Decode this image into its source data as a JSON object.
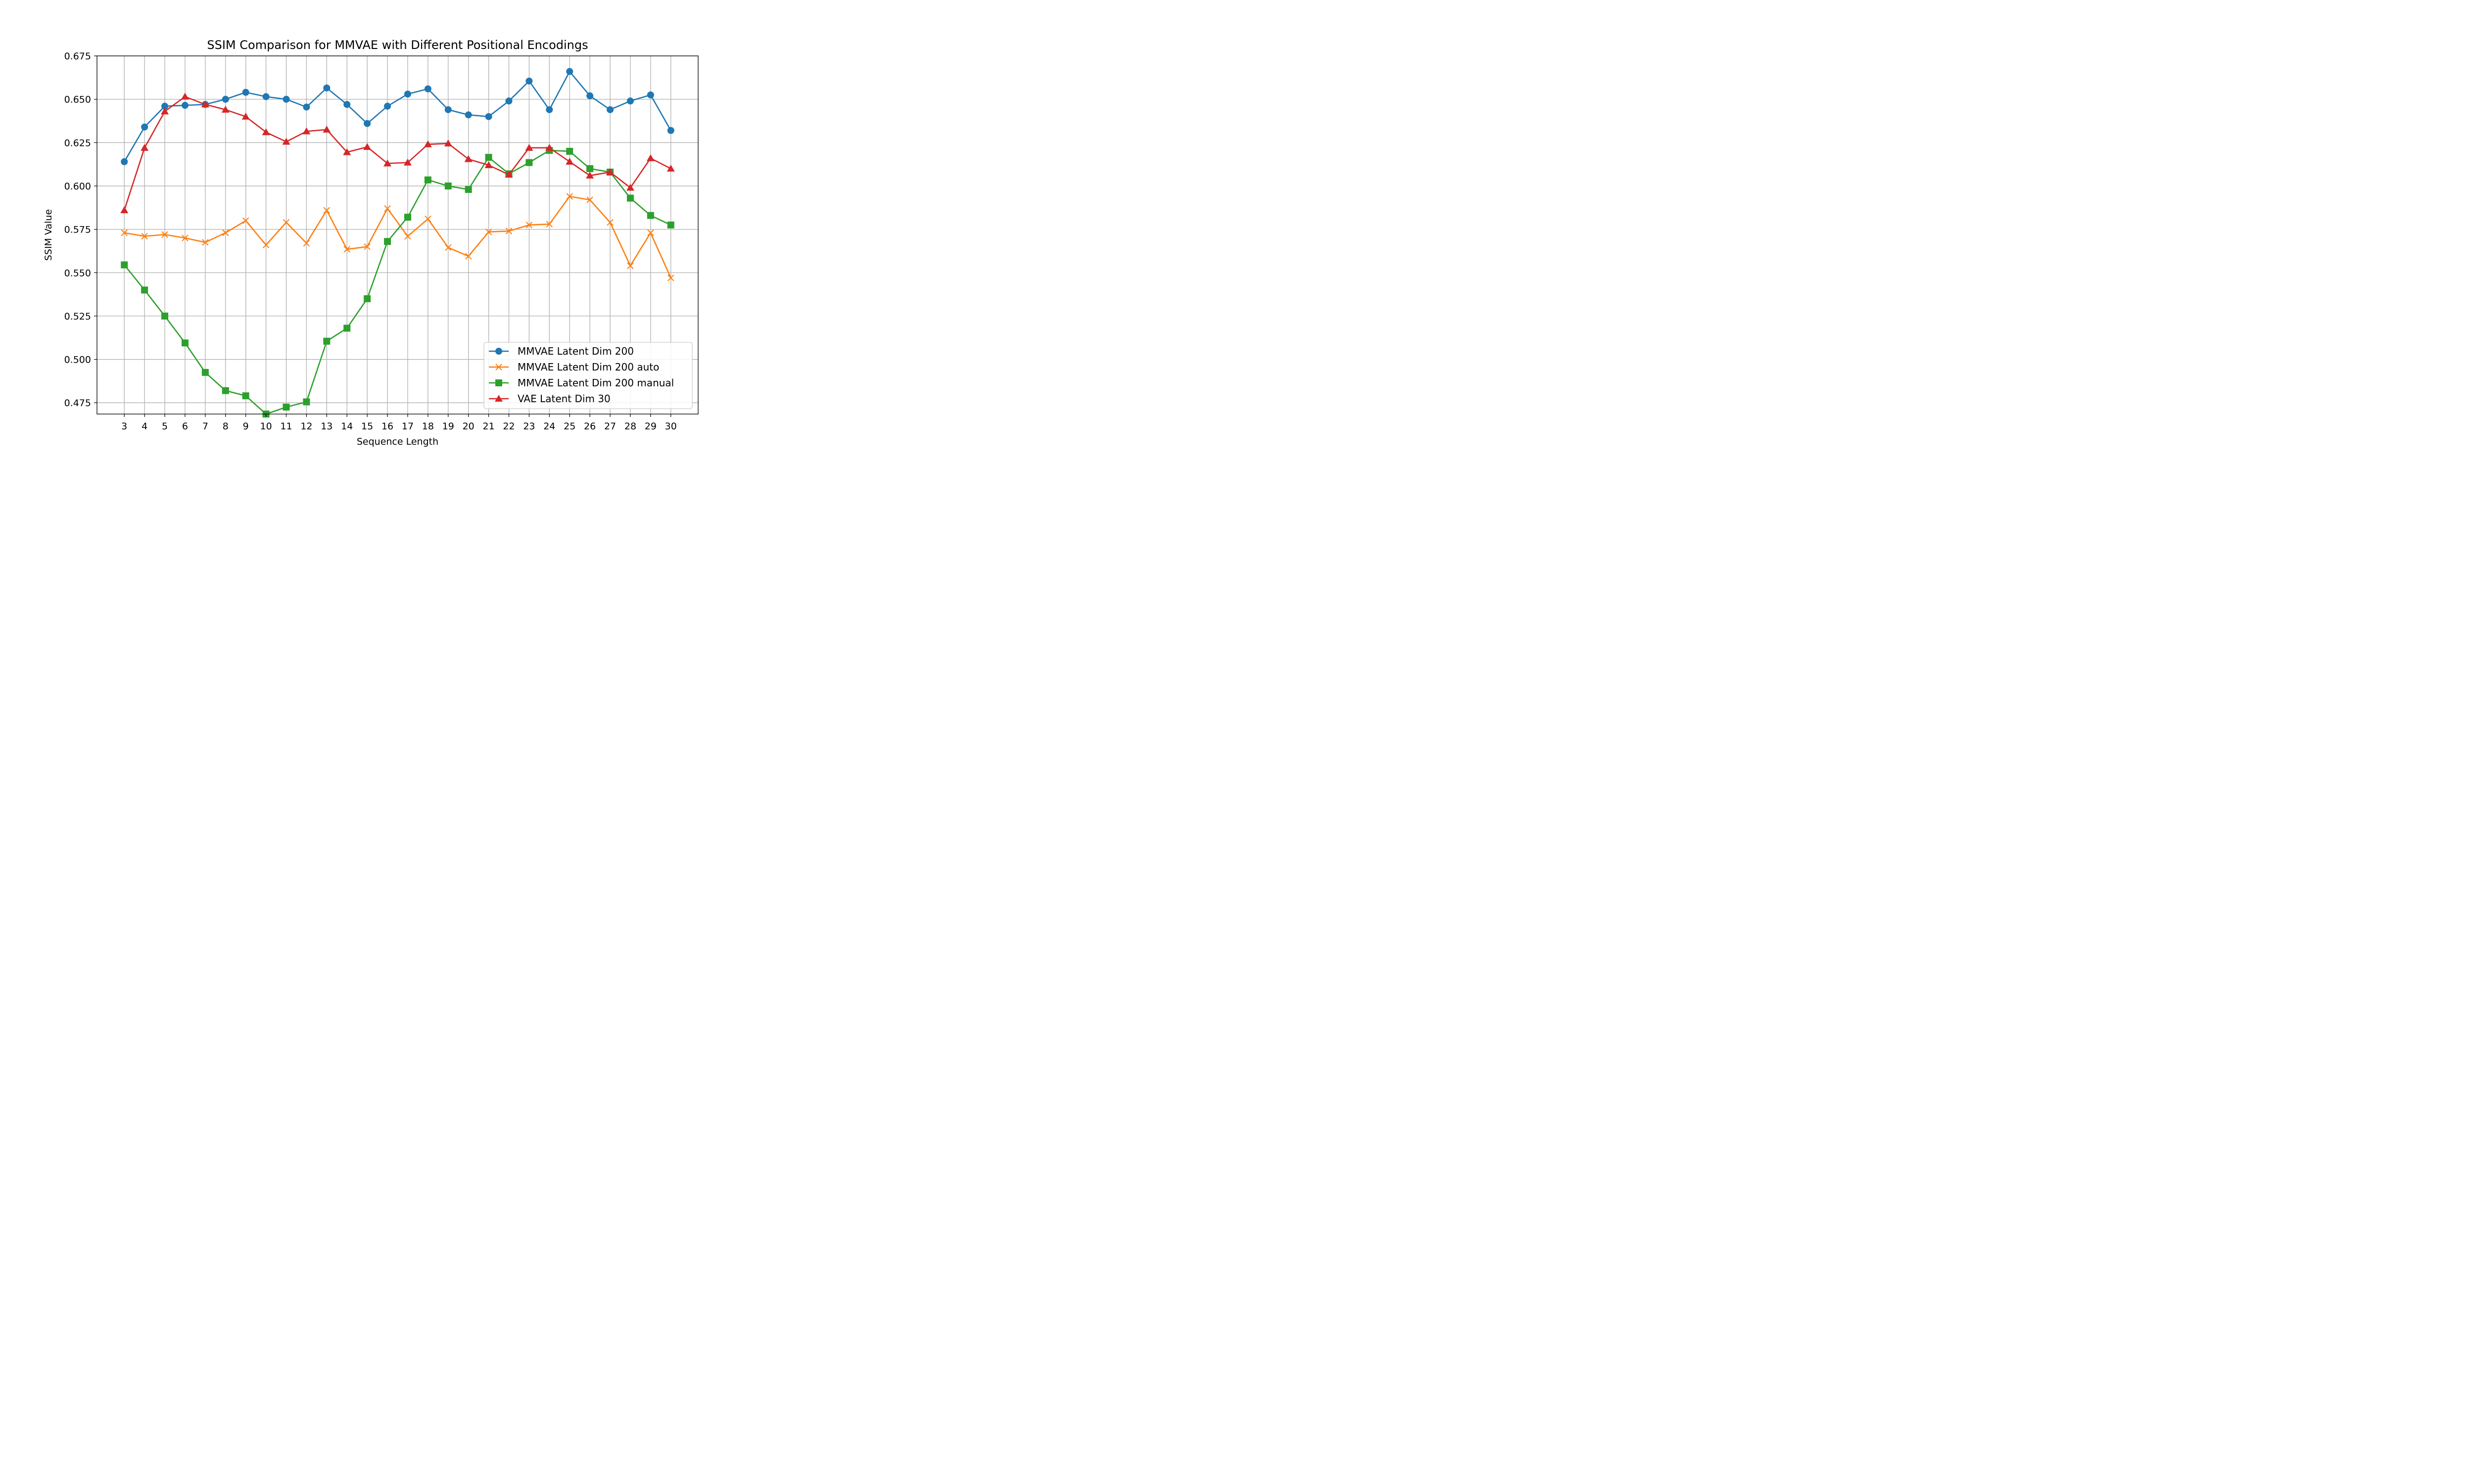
{
  "chart_data": {
    "type": "line",
    "title": "SSIM Comparison for MMVAE with Different Positional Encodings",
    "xlabel": "Sequence Length",
    "ylabel": "SSIM Value",
    "x": [
      3,
      4,
      5,
      6,
      7,
      8,
      9,
      10,
      11,
      12,
      13,
      14,
      15,
      16,
      17,
      18,
      19,
      20,
      21,
      22,
      23,
      24,
      25,
      26,
      27,
      28,
      29,
      30
    ],
    "xlim": [
      1.65,
      31.35
    ],
    "ylim": [
      0.4685,
      0.675
    ],
    "yticks": [
      0.475,
      0.5,
      0.525,
      0.55,
      0.575,
      0.6,
      0.625,
      0.65,
      0.675
    ],
    "ytick_labels": [
      "0.475",
      "0.500",
      "0.525",
      "0.550",
      "0.575",
      "0.600",
      "0.625",
      "0.650",
      "0.675"
    ],
    "grid": true,
    "legend_position": "lower right",
    "series": [
      {
        "name": "MMVAE Latent Dim 200",
        "color": "#1f77b4",
        "marker": "circle",
        "values": [
          0.614,
          0.634,
          0.646,
          0.6465,
          0.647,
          0.65,
          0.654,
          0.6515,
          0.65,
          0.6455,
          0.6565,
          0.647,
          0.636,
          0.646,
          0.653,
          0.656,
          0.644,
          0.641,
          0.64,
          0.649,
          0.6605,
          0.644,
          0.666,
          0.652,
          0.644,
          0.649,
          0.6525,
          0.632
        ]
      },
      {
        "name": "MMVAE Latent Dim 200 auto",
        "color": "#ff7f0e",
        "marker": "x",
        "values": [
          0.573,
          0.571,
          0.572,
          0.57,
          0.5675,
          0.573,
          0.58,
          0.566,
          0.579,
          0.567,
          0.586,
          0.5635,
          0.565,
          0.587,
          0.571,
          0.581,
          0.5645,
          0.5595,
          0.5735,
          0.574,
          0.5775,
          0.578,
          0.594,
          0.592,
          0.579,
          0.554,
          0.573,
          0.547
        ]
      },
      {
        "name": "MMVAE Latent Dim 200 manual",
        "color": "#2ca02c",
        "marker": "square",
        "values": [
          0.5545,
          0.54,
          0.525,
          0.5095,
          0.4925,
          0.482,
          0.479,
          0.4685,
          0.4725,
          0.4755,
          0.5105,
          0.518,
          0.535,
          0.568,
          0.582,
          0.6035,
          0.6,
          0.598,
          0.6165,
          0.607,
          0.6135,
          0.6205,
          0.62,
          0.61,
          0.608,
          0.593,
          0.583,
          0.5775
        ]
      },
      {
        "name": "VAE Latent Dim 30",
        "color": "#d62728",
        "marker": "triangle",
        "values": [
          0.586,
          0.622,
          0.643,
          0.6515,
          0.647,
          0.644,
          0.64,
          0.631,
          0.6255,
          0.6315,
          0.6325,
          0.6195,
          0.6225,
          0.613,
          0.6135,
          0.624,
          0.6245,
          0.6155,
          0.612,
          0.6065,
          0.622,
          0.622,
          0.614,
          0.606,
          0.608,
          0.599,
          0.616,
          0.61
        ]
      }
    ]
  }
}
